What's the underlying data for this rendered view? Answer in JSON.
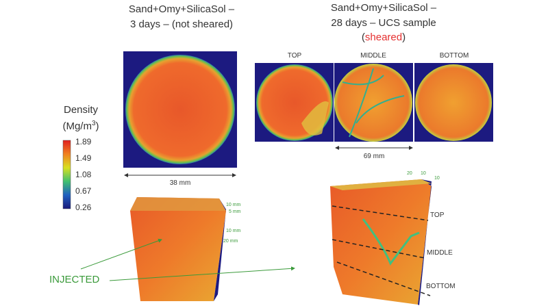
{
  "left_panel": {
    "title_lines": [
      "Sand+Omy+SilicaSol –",
      "3 days – (not sheared)"
    ],
    "scale": "38 mm",
    "axis_labels": [
      "10 mm",
      "5 mm",
      "10 mm",
      "20 mm"
    ]
  },
  "right_panel": {
    "title_lines": [
      "Sand+Omy+SilicaSol –",
      "28 days – UCS sample"
    ],
    "title_line3": [
      "(",
      "sheared",
      ")"
    ],
    "slice_labels": [
      "TOP",
      "MIDDLE",
      "BOTTOM"
    ],
    "scale": "69 mm",
    "axis_labels": [
      "20",
      "10",
      "10"
    ],
    "section_labels": [
      "TOP",
      "MIDDLE",
      "BOTTOM"
    ]
  },
  "colorbar": {
    "label": [
      "Density",
      "(Mg/m",
      "3",
      ")"
    ],
    "ticks": [
      "1.89",
      "1.49",
      "1.08",
      "0.67",
      "0.26"
    ]
  },
  "annotation": "INJECTED"
}
